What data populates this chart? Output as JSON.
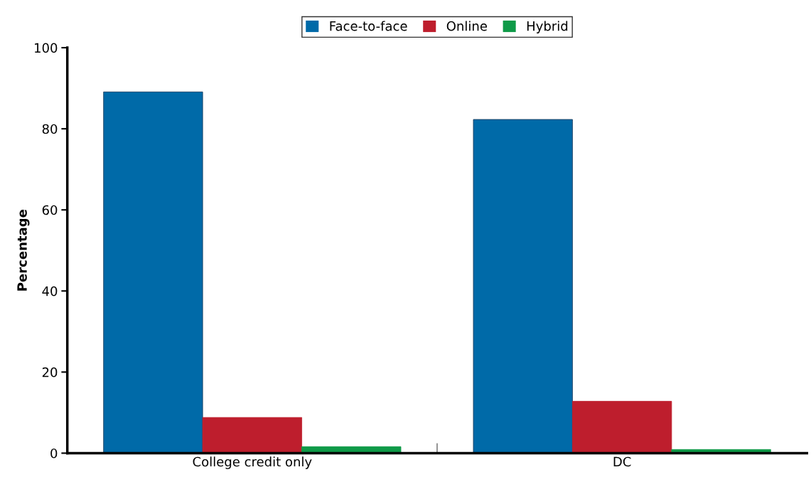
{
  "chart_data": {
    "type": "bar",
    "ylabel": "Percentage",
    "categories": [
      "College credit only",
      "DC"
    ],
    "series": [
      {
        "name": "Face-to-face",
        "color": "#006aa8",
        "values": [
          89.1,
          82.3
        ]
      },
      {
        "name": "Online",
        "color": "#be1e2d",
        "values": [
          8.8,
          12.8
        ]
      },
      {
        "name": "Hybrid",
        "color": "#0f9a48",
        "values": [
          1.6,
          0.9
        ]
      }
    ],
    "ylim": [
      0,
      100
    ],
    "yticks": [
      0,
      20,
      40,
      60,
      80,
      100
    ],
    "grid": false,
    "legend": "top"
  }
}
